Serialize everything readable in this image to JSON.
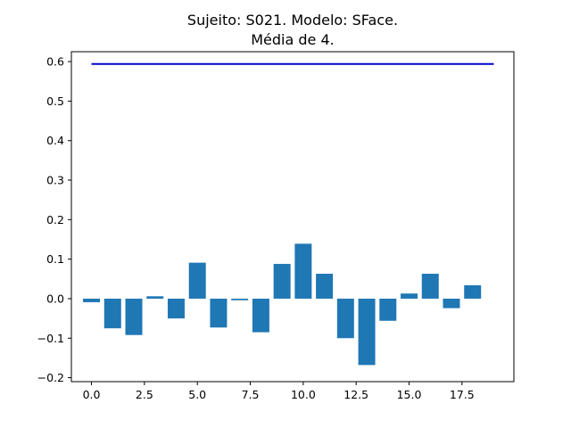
{
  "chart_data": {
    "type": "bar",
    "title": "Sujeito: S021. Modelo: SFace.",
    "subtitle": "Média de 4.",
    "xlabel": "",
    "ylabel": "",
    "xlim": [
      -0.95,
      19.95
    ],
    "ylim": [
      -0.21,
      0.625
    ],
    "grid": false,
    "x": [
      0,
      1,
      2,
      3,
      4,
      5,
      6,
      7,
      8,
      9,
      10,
      11,
      12,
      13,
      14,
      15,
      16,
      17,
      18
    ],
    "values": [
      -0.009,
      -0.075,
      -0.092,
      0.006,
      -0.05,
      0.091,
      -0.073,
      -0.004,
      -0.085,
      0.088,
      0.139,
      0.063,
      -0.1,
      -0.168,
      -0.056,
      0.013,
      0.063,
      -0.024,
      0.034
    ],
    "bar_color": "#1f77b4",
    "reference_line": {
      "y": 0.594,
      "x_start": 0,
      "x_end": 19,
      "color": "#0000cd"
    },
    "xticks": [
      0.0,
      2.5,
      5.0,
      7.5,
      10.0,
      12.5,
      15.0,
      17.5
    ],
    "xtick_labels": [
      "0.0",
      "2.5",
      "5.0",
      "7.5",
      "10.0",
      "12.5",
      "15.0",
      "17.5"
    ],
    "yticks": [
      -0.2,
      -0.1,
      0.0,
      0.1,
      0.2,
      0.3,
      0.4,
      0.5,
      0.6
    ],
    "ytick_labels": [
      "−0.2",
      "−0.1",
      "0.0",
      "0.1",
      "0.2",
      "0.3",
      "0.4",
      "0.5",
      "0.6"
    ]
  }
}
